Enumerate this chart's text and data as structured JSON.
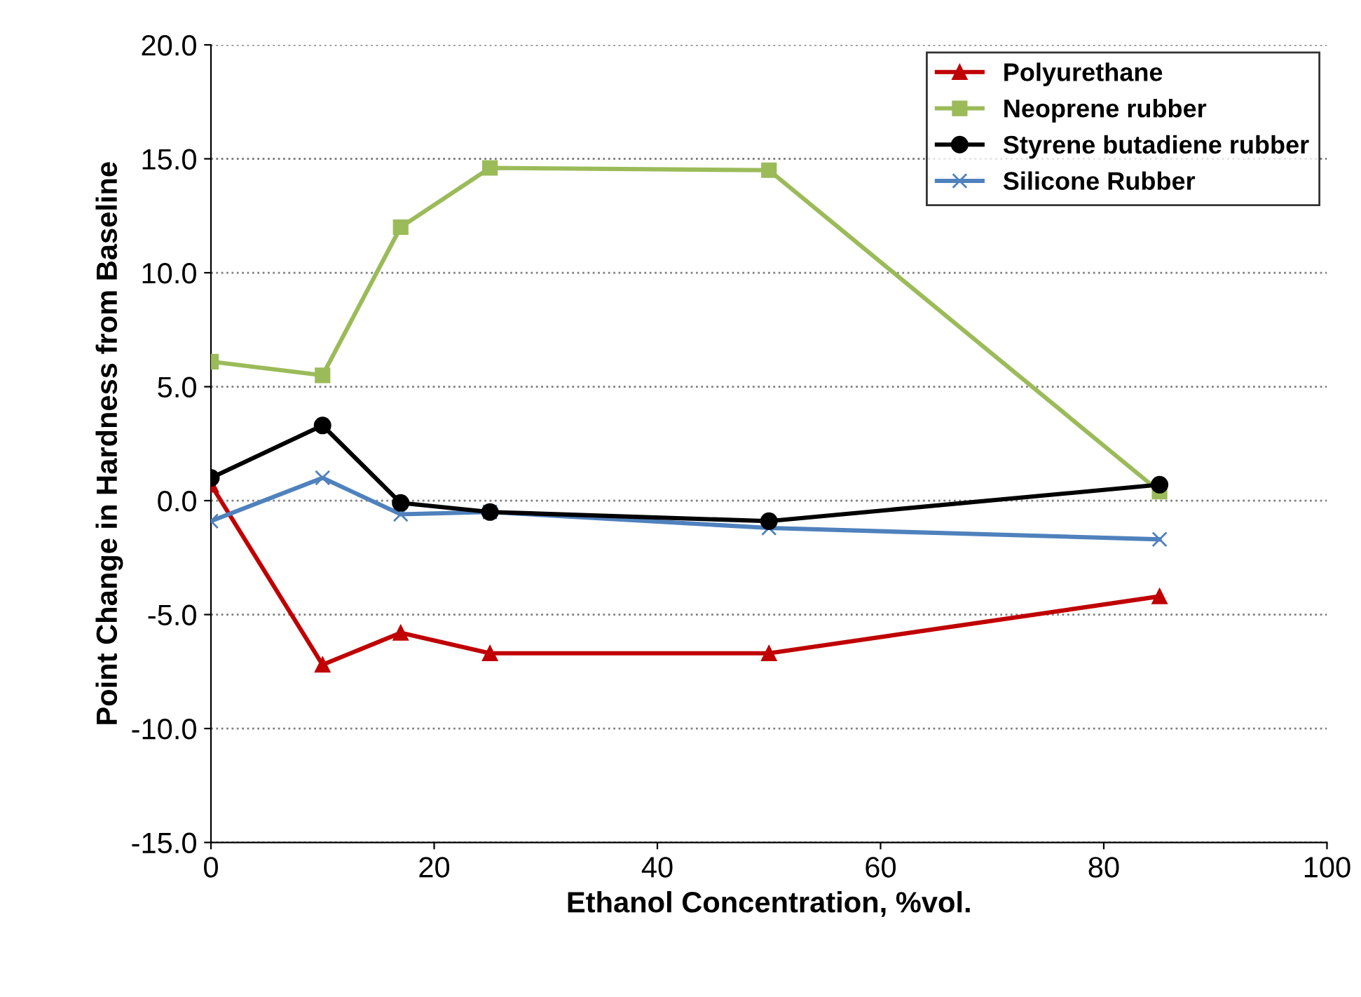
{
  "chart_data": {
    "type": "line",
    "xlabel": "Ethanol Concentration, %vol.",
    "ylabel": "Point Change in Hardness from Baseline",
    "x": [
      0,
      10,
      17,
      25,
      50,
      85
    ],
    "series": [
      {
        "name": "Polyurethane",
        "color": "#c00000",
        "marker": "triangle",
        "values": [
          0.7,
          -7.2,
          -5.8,
          -6.7,
          -6.7,
          -4.2
        ]
      },
      {
        "name": "Neoprene rubber",
        "color": "#9bbb59",
        "marker": "square",
        "values": [
          6.1,
          5.5,
          12.0,
          14.6,
          14.5,
          0.4
        ]
      },
      {
        "name": "Styrene butadiene rubber",
        "color": "#000000",
        "marker": "circle",
        "values": [
          1.0,
          3.3,
          -0.1,
          -0.5,
          -0.9,
          0.7
        ]
      },
      {
        "name": "Silicone Rubber",
        "color": "#4f81bd",
        "marker": "cross",
        "values": [
          -0.9,
          1.0,
          -0.6,
          -0.5,
          -1.2,
          -1.7
        ]
      }
    ],
    "xlim": [
      0,
      100
    ],
    "xticks": [
      0,
      20,
      40,
      60,
      80,
      100
    ],
    "ylim": [
      -15,
      20
    ],
    "yticks": [
      {
        "value": -15,
        "label": "-15.0"
      },
      {
        "value": -10,
        "label": "-10.0"
      },
      {
        "value": -5,
        "label": "-5.0"
      },
      {
        "value": 0,
        "label": "0.0"
      },
      {
        "value": 5,
        "label": "5.0"
      },
      {
        "value": 10,
        "label": "10.0"
      },
      {
        "value": 15,
        "label": "15.0"
      },
      {
        "value": 20,
        "label": "20.0"
      }
    ],
    "grid": "y",
    "legend": "top right",
    "line_style": "solid"
  }
}
